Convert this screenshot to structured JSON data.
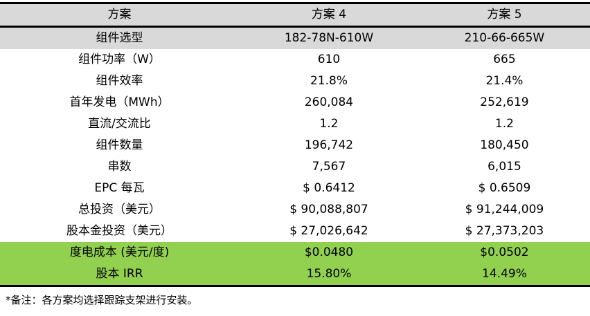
{
  "table": {
    "header": {
      "col1": "方案",
      "col2": "方案 4",
      "col3": "方案 5"
    },
    "rows": [
      {
        "label": "组件选型",
        "v1": "182-78N-610W",
        "v2": "210-66-665W",
        "style": "gray"
      },
      {
        "label": "组件功率（W）",
        "v1": "610",
        "v2": "665",
        "style": "white"
      },
      {
        "label": "组件效率",
        "v1": "21.8%",
        "v2": "21.4%",
        "style": "white"
      },
      {
        "label": "首年发电（MWh）",
        "v1": "260,084",
        "v2": "252,619",
        "style": "white"
      },
      {
        "label": "直流/交流比",
        "v1": "1.2",
        "v2": "1.2",
        "style": "white"
      },
      {
        "label": "组件数量",
        "v1": "196,742",
        "v2": "180,450",
        "style": "white"
      },
      {
        "label": "串数",
        "v1": "7,567",
        "v2": "6,015",
        "style": "white"
      },
      {
        "label": "EPC 每瓦",
        "v1": "$ 0.6412",
        "v2": "$ 0.6509",
        "style": "white"
      },
      {
        "label": "总投资（美元）",
        "v1": "$ 90,088,807",
        "v2": "$ 91,244,009",
        "style": "white"
      },
      {
        "label": "股本金投资（美元）",
        "v1": "$ 27,026,642",
        "v2": "$ 27,373,203",
        "style": "white"
      },
      {
        "label": "度电成本 (美元/度)",
        "v1": "$0.0480",
        "v2": "$0.0502",
        "style": "green"
      },
      {
        "label": "股本 IRR",
        "v1": "15.80%",
        "v2": "14.49%",
        "style": "green"
      }
    ]
  },
  "note": "*备注：各方案均选择跟踪支架进行安装。",
  "colors": {
    "header_bg": "#D9D9D9",
    "highlight_bg": "#92D050",
    "border": "#000000",
    "text": "#000000"
  }
}
